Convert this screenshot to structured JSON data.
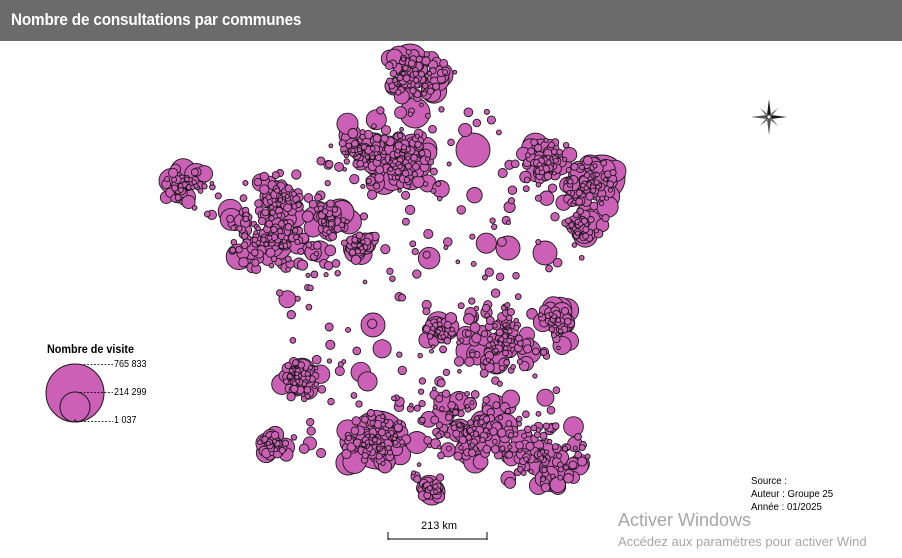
{
  "header": {
    "title": "Nombre de consultations par communes"
  },
  "colors": {
    "header_bg": "#6b6b6b",
    "bubble_fill": "#cc5fb6",
    "bubble_stroke": "#1a1a1a"
  },
  "map": {
    "subject": "France",
    "symbol": "proportional-circle"
  },
  "legend": {
    "title": "Nombre de visite",
    "values": [
      "765 833",
      "214 299",
      "1 037"
    ]
  },
  "scale_bar": {
    "label": "213 km"
  },
  "compass": {
    "icon": "compass-rose-icon"
  },
  "source": {
    "line1": "Source :",
    "line2": "Auteur : Groupe 25",
    "line3": "Année : 01/2025"
  },
  "watermark": {
    "title": "Activer Windows",
    "subtitle": "Accédez aux paramètres pour activer Wind"
  }
}
